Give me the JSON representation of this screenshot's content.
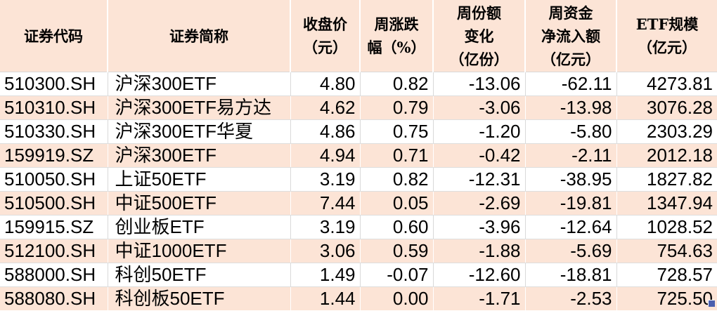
{
  "colors": {
    "header_bg": "#fce4d6",
    "row_bg": "#ffffff",
    "row_alt_bg": "#fce4d6",
    "grid_gray": "#d9d9d9",
    "grid_white": "#ffffff",
    "text": "#000000",
    "fill_handle": "#4a5fae"
  },
  "table": {
    "headers": [
      {
        "label": "证券代码"
      },
      {
        "label": "证券简称"
      },
      {
        "label": "收盘价\n（元）"
      },
      {
        "label": "周涨跌\n幅（%）"
      },
      {
        "label": "周份额\n变化\n（亿份）"
      },
      {
        "label": "周资金\n净流入额\n（亿元）"
      },
      {
        "label": "ETF规模\n（亿元）"
      }
    ],
    "rows": [
      {
        "code": "510300.SH",
        "name": "沪深300ETF",
        "close": "4.80",
        "chg": "0.82",
        "share_change": "-13.06",
        "net_inflow": "-62.11",
        "scale": "4273.81"
      },
      {
        "code": "510310.SH",
        "name": "沪深300ETF易方达",
        "close": "4.62",
        "chg": "0.79",
        "share_change": "-3.06",
        "net_inflow": "-13.98",
        "scale": "3076.28"
      },
      {
        "code": "510330.SH",
        "name": "沪深300ETF华夏",
        "close": "4.86",
        "chg": "0.75",
        "share_change": "-1.20",
        "net_inflow": "-5.80",
        "scale": "2303.29"
      },
      {
        "code": "159919.SZ",
        "name": "沪深300ETF",
        "close": "4.94",
        "chg": "0.71",
        "share_change": "-0.42",
        "net_inflow": "-2.11",
        "scale": "2012.18"
      },
      {
        "code": "510050.SH",
        "name": "上证50ETF",
        "close": "3.19",
        "chg": "0.82",
        "share_change": "-12.31",
        "net_inflow": "-38.95",
        "scale": "1827.82"
      },
      {
        "code": "510500.SH",
        "name": "中证500ETF",
        "close": "7.44",
        "chg": "0.05",
        "share_change": "-2.69",
        "net_inflow": "-19.81",
        "scale": "1347.94"
      },
      {
        "code": "159915.SZ",
        "name": "创业板ETF",
        "close": "3.19",
        "chg": "0.60",
        "share_change": "-3.96",
        "net_inflow": "-12.64",
        "scale": "1028.52"
      },
      {
        "code": "512100.SH",
        "name": "中证1000ETF",
        "close": "3.06",
        "chg": "0.59",
        "share_change": "-1.88",
        "net_inflow": "-5.69",
        "scale": "754.63"
      },
      {
        "code": "588000.SH",
        "name": "科创50ETF",
        "close": "1.49",
        "chg": "-0.07",
        "share_change": "-12.60",
        "net_inflow": "-18.81",
        "scale": "728.57"
      },
      {
        "code": "588080.SH",
        "name": "科创板50ETF",
        "close": "1.44",
        "chg": "0.00",
        "share_change": "-1.71",
        "net_inflow": "-2.53",
        "scale": "725.50"
      }
    ]
  }
}
